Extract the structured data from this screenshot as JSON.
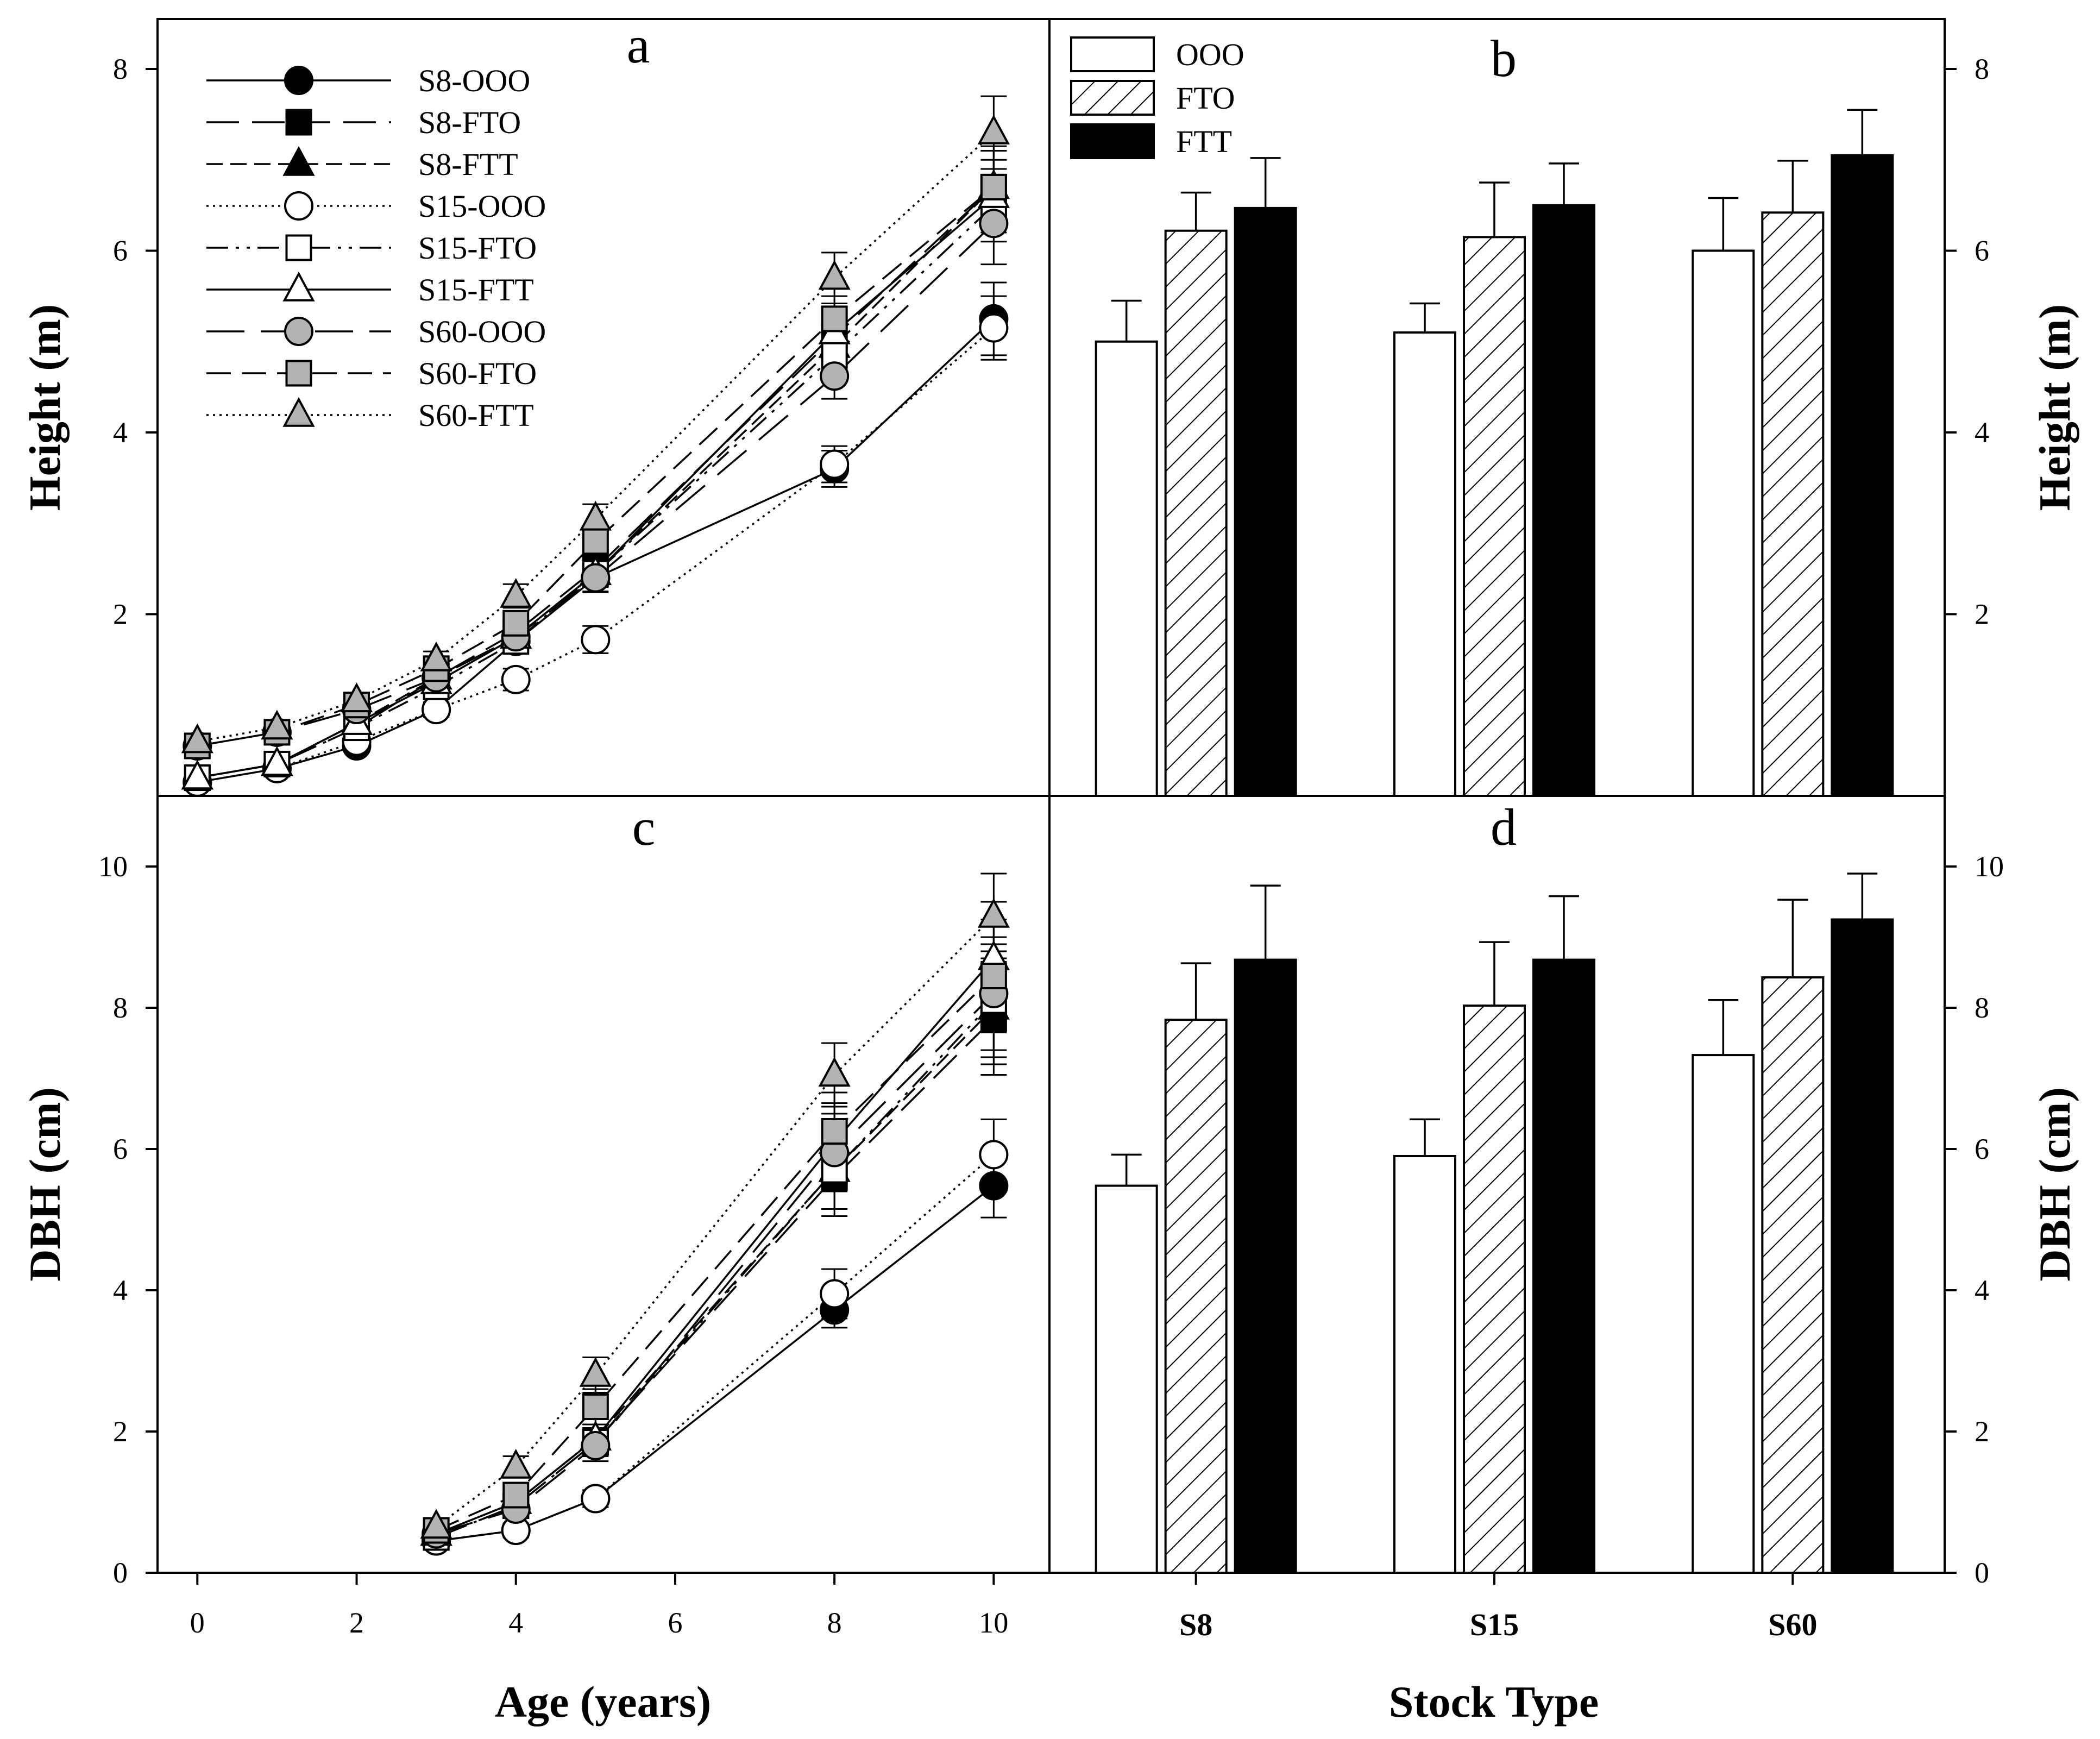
{
  "figure": {
    "x_label_left": "Age (years)",
    "x_label_right": "Stock Type"
  },
  "chart_data": [
    {
      "panel": "a",
      "type": "line",
      "xlabel": "Age (years)",
      "ylabel": "Height (m)",
      "xlim": [
        -0.5,
        10.7
      ],
      "ylim": [
        0,
        8.55
      ],
      "xticks": [
        "0",
        "2",
        "4",
        "6",
        "8",
        "10"
      ],
      "yticks": [
        "2",
        "4",
        "6",
        "8"
      ],
      "x": [
        0,
        1,
        2,
        3,
        4,
        5,
        8,
        10
      ],
      "series": [
        {
          "name": "S8-OOO",
          "marker": "circle",
          "fill": "#000000",
          "dash": "",
          "values": [
            0.15,
            0.3,
            0.55,
            0.95,
            1.7,
            2.4,
            3.6,
            5.25
          ],
          "err": [
            0.03,
            0.04,
            0.06,
            0.08,
            0.12,
            0.15,
            0.2,
            0.4
          ]
        },
        {
          "name": "S8-FTO",
          "marker": "square",
          "fill": "#000000",
          "dash": "60,24",
          "values": [
            0.2,
            0.35,
            0.75,
            1.3,
            1.8,
            2.5,
            5.05,
            6.7
          ],
          "err": [
            0.03,
            0.04,
            0.06,
            0.08,
            0.12,
            0.15,
            0.25,
            0.4
          ]
        },
        {
          "name": "S8-FTT",
          "marker": "triangle",
          "fill": "#000000",
          "dash": "30,14",
          "values": [
            0.2,
            0.35,
            0.8,
            1.3,
            1.75,
            2.45,
            4.95,
            6.7
          ],
          "err": [
            0.03,
            0.04,
            0.06,
            0.08,
            0.12,
            0.15,
            0.25,
            0.4
          ]
        },
        {
          "name": "S15-OOO",
          "marker": "circle",
          "fill": "#ffffff",
          "dash": "4,8",
          "values": [
            0.15,
            0.3,
            0.6,
            0.95,
            1.28,
            1.72,
            3.65,
            5.15
          ],
          "err": [
            0.03,
            0.04,
            0.06,
            0.08,
            0.12,
            0.15,
            0.2,
            0.35
          ]
        },
        {
          "name": "S15-FTO",
          "marker": "square",
          "fill": "#ffffff",
          "dash": "40,14,6,14,6,14",
          "values": [
            0.2,
            0.35,
            0.75,
            1.2,
            1.7,
            2.45,
            4.85,
            6.5
          ],
          "err": [
            0.03,
            0.04,
            0.06,
            0.08,
            0.12,
            0.15,
            0.25,
            0.4
          ]
        },
        {
          "name": "S15-FTT",
          "marker": "triangle",
          "fill": "#ffffff",
          "dash": "",
          "values": [
            0.2,
            0.35,
            0.8,
            1.25,
            1.75,
            2.45,
            5.1,
            6.6
          ],
          "err": [
            0.03,
            0.04,
            0.06,
            0.08,
            0.12,
            0.15,
            0.25,
            0.4
          ]
        },
        {
          "name": "S60-OOO",
          "marker": "circle",
          "fill": "#b3b3b3",
          "dash": "70,30",
          "values": [
            0.55,
            0.7,
            0.95,
            1.3,
            1.75,
            2.4,
            4.62,
            6.3
          ],
          "err": [
            0.04,
            0.05,
            0.07,
            0.09,
            0.13,
            0.16,
            0.25,
            0.45
          ]
        },
        {
          "name": "S60-FTO",
          "marker": "square",
          "fill": "#b3b3b3",
          "dash": "45,20",
          "values": [
            0.55,
            0.7,
            1.0,
            1.4,
            1.9,
            2.8,
            5.25,
            6.7
          ],
          "err": [
            0.04,
            0.05,
            0.07,
            0.09,
            0.13,
            0.16,
            0.25,
            0.45
          ]
        },
        {
          "name": "S60-FTT",
          "marker": "triangle",
          "fill": "#b3b3b3",
          "dash": "4,8",
          "values": [
            0.6,
            0.75,
            1.05,
            1.5,
            2.2,
            3.05,
            5.7,
            7.3
          ],
          "err": [
            0.04,
            0.05,
            0.07,
            0.09,
            0.13,
            0.16,
            0.28,
            0.4
          ]
        }
      ]
    },
    {
      "panel": "b",
      "type": "bar",
      "ylabel": "Height (m)",
      "ylim": [
        0,
        8.55
      ],
      "yticks": [
        "2",
        "4",
        "6",
        "8"
      ],
      "categories": [
        "S8",
        "S15",
        "S60"
      ],
      "series": [
        {
          "name": "OOO",
          "pattern": "open",
          "values": [
            5.0,
            5.1,
            6.0
          ],
          "err": [
            0.45,
            0.32,
            0.58
          ]
        },
        {
          "name": "FTO",
          "pattern": "hatched",
          "values": [
            6.22,
            6.15,
            6.42
          ],
          "err": [
            0.42,
            0.6,
            0.57
          ]
        },
        {
          "name": "FTT",
          "pattern": "solid",
          "values": [
            6.47,
            6.5,
            7.05
          ],
          "err": [
            0.55,
            0.46,
            0.5
          ]
        }
      ]
    },
    {
      "panel": "c",
      "type": "line",
      "xlabel": "Age (years)",
      "ylabel": "DBH (cm)",
      "xlim": [
        -0.5,
        10.7
      ],
      "ylim": [
        0,
        11
      ],
      "xticks": [
        "0",
        "2",
        "4",
        "6",
        "8",
        "10"
      ],
      "yticks": [
        "0",
        "2",
        "4",
        "6",
        "8",
        "10"
      ],
      "x": [
        3,
        4,
        5,
        8,
        10
      ],
      "series": [
        {
          "name": "S8-OOO",
          "marker": "circle",
          "fill": "#000000",
          "dash": "",
          "values": [
            0.45,
            0.6,
            1.05,
            3.72,
            5.48
          ],
          "err": [
            0.08,
            0.1,
            0.12,
            0.25,
            0.45
          ]
        },
        {
          "name": "S8-FTO",
          "marker": "square",
          "fill": "#000000",
          "dash": "60,24",
          "values": [
            0.5,
            0.95,
            1.85,
            5.6,
            7.85
          ],
          "err": [
            0.08,
            0.1,
            0.2,
            0.55,
            0.8
          ]
        },
        {
          "name": "S8-FTT",
          "marker": "triangle",
          "fill": "#000000",
          "dash": "30,14",
          "values": [
            0.55,
            1.0,
            1.9,
            5.7,
            8.0
          ],
          "err": [
            0.08,
            0.1,
            0.2,
            0.55,
            0.8
          ]
        },
        {
          "name": "S15-OOO",
          "marker": "circle",
          "fill": "#ffffff",
          "dash": "4,8",
          "values": [
            0.45,
            0.6,
            1.05,
            3.95,
            5.92
          ],
          "err": [
            0.08,
            0.1,
            0.12,
            0.35,
            0.5
          ]
        },
        {
          "name": "S15-FTO",
          "marker": "square",
          "fill": "#ffffff",
          "dash": "40,14,6,14,6,14",
          "values": [
            0.5,
            0.95,
            1.85,
            5.7,
            8.1
          ],
          "err": [
            0.08,
            0.1,
            0.2,
            0.55,
            0.8
          ]
        },
        {
          "name": "S15-FTT",
          "marker": "triangle",
          "fill": "#ffffff",
          "dash": "",
          "values": [
            0.55,
            1.0,
            1.9,
            6.1,
            8.7
          ],
          "err": [
            0.08,
            0.1,
            0.2,
            0.55,
            0.8
          ]
        },
        {
          "name": "S60-OOO",
          "marker": "circle",
          "fill": "#b3b3b3",
          "dash": "70,30",
          "values": [
            0.55,
            0.9,
            1.8,
            5.95,
            8.2
          ],
          "err": [
            0.08,
            0.12,
            0.22,
            0.55,
            0.8
          ]
        },
        {
          "name": "S60-FTO",
          "marker": "square",
          "fill": "#b3b3b3",
          "dash": "45,20",
          "values": [
            0.6,
            1.1,
            2.35,
            6.25,
            8.45
          ],
          "err": [
            0.08,
            0.12,
            0.25,
            0.55,
            0.8
          ]
        },
        {
          "name": "S60-FTT",
          "marker": "triangle",
          "fill": "#b3b3b3",
          "dash": "4,8",
          "values": [
            0.65,
            1.5,
            2.8,
            7.05,
            9.3
          ],
          "err": [
            0.08,
            0.15,
            0.25,
            0.45,
            0.6
          ]
        }
      ]
    },
    {
      "panel": "d",
      "type": "bar",
      "ylabel": "DBH (cm)",
      "ylim": [
        0,
        11
      ],
      "yticks": [
        "0",
        "2",
        "4",
        "6",
        "8",
        "10"
      ],
      "categories": [
        "S8",
        "S15",
        "S60"
      ],
      "series": [
        {
          "name": "OOO",
          "pattern": "open",
          "values": [
            5.48,
            5.9,
            7.33
          ],
          "err": [
            0.44,
            0.52,
            0.78
          ]
        },
        {
          "name": "FTO",
          "pattern": "hatched",
          "values": [
            7.83,
            8.03,
            8.43
          ],
          "err": [
            0.8,
            0.9,
            1.1
          ]
        },
        {
          "name": "FTT",
          "pattern": "solid",
          "values": [
            8.68,
            8.68,
            9.25
          ],
          "err": [
            1.05,
            0.9,
            0.65
          ]
        }
      ]
    }
  ]
}
